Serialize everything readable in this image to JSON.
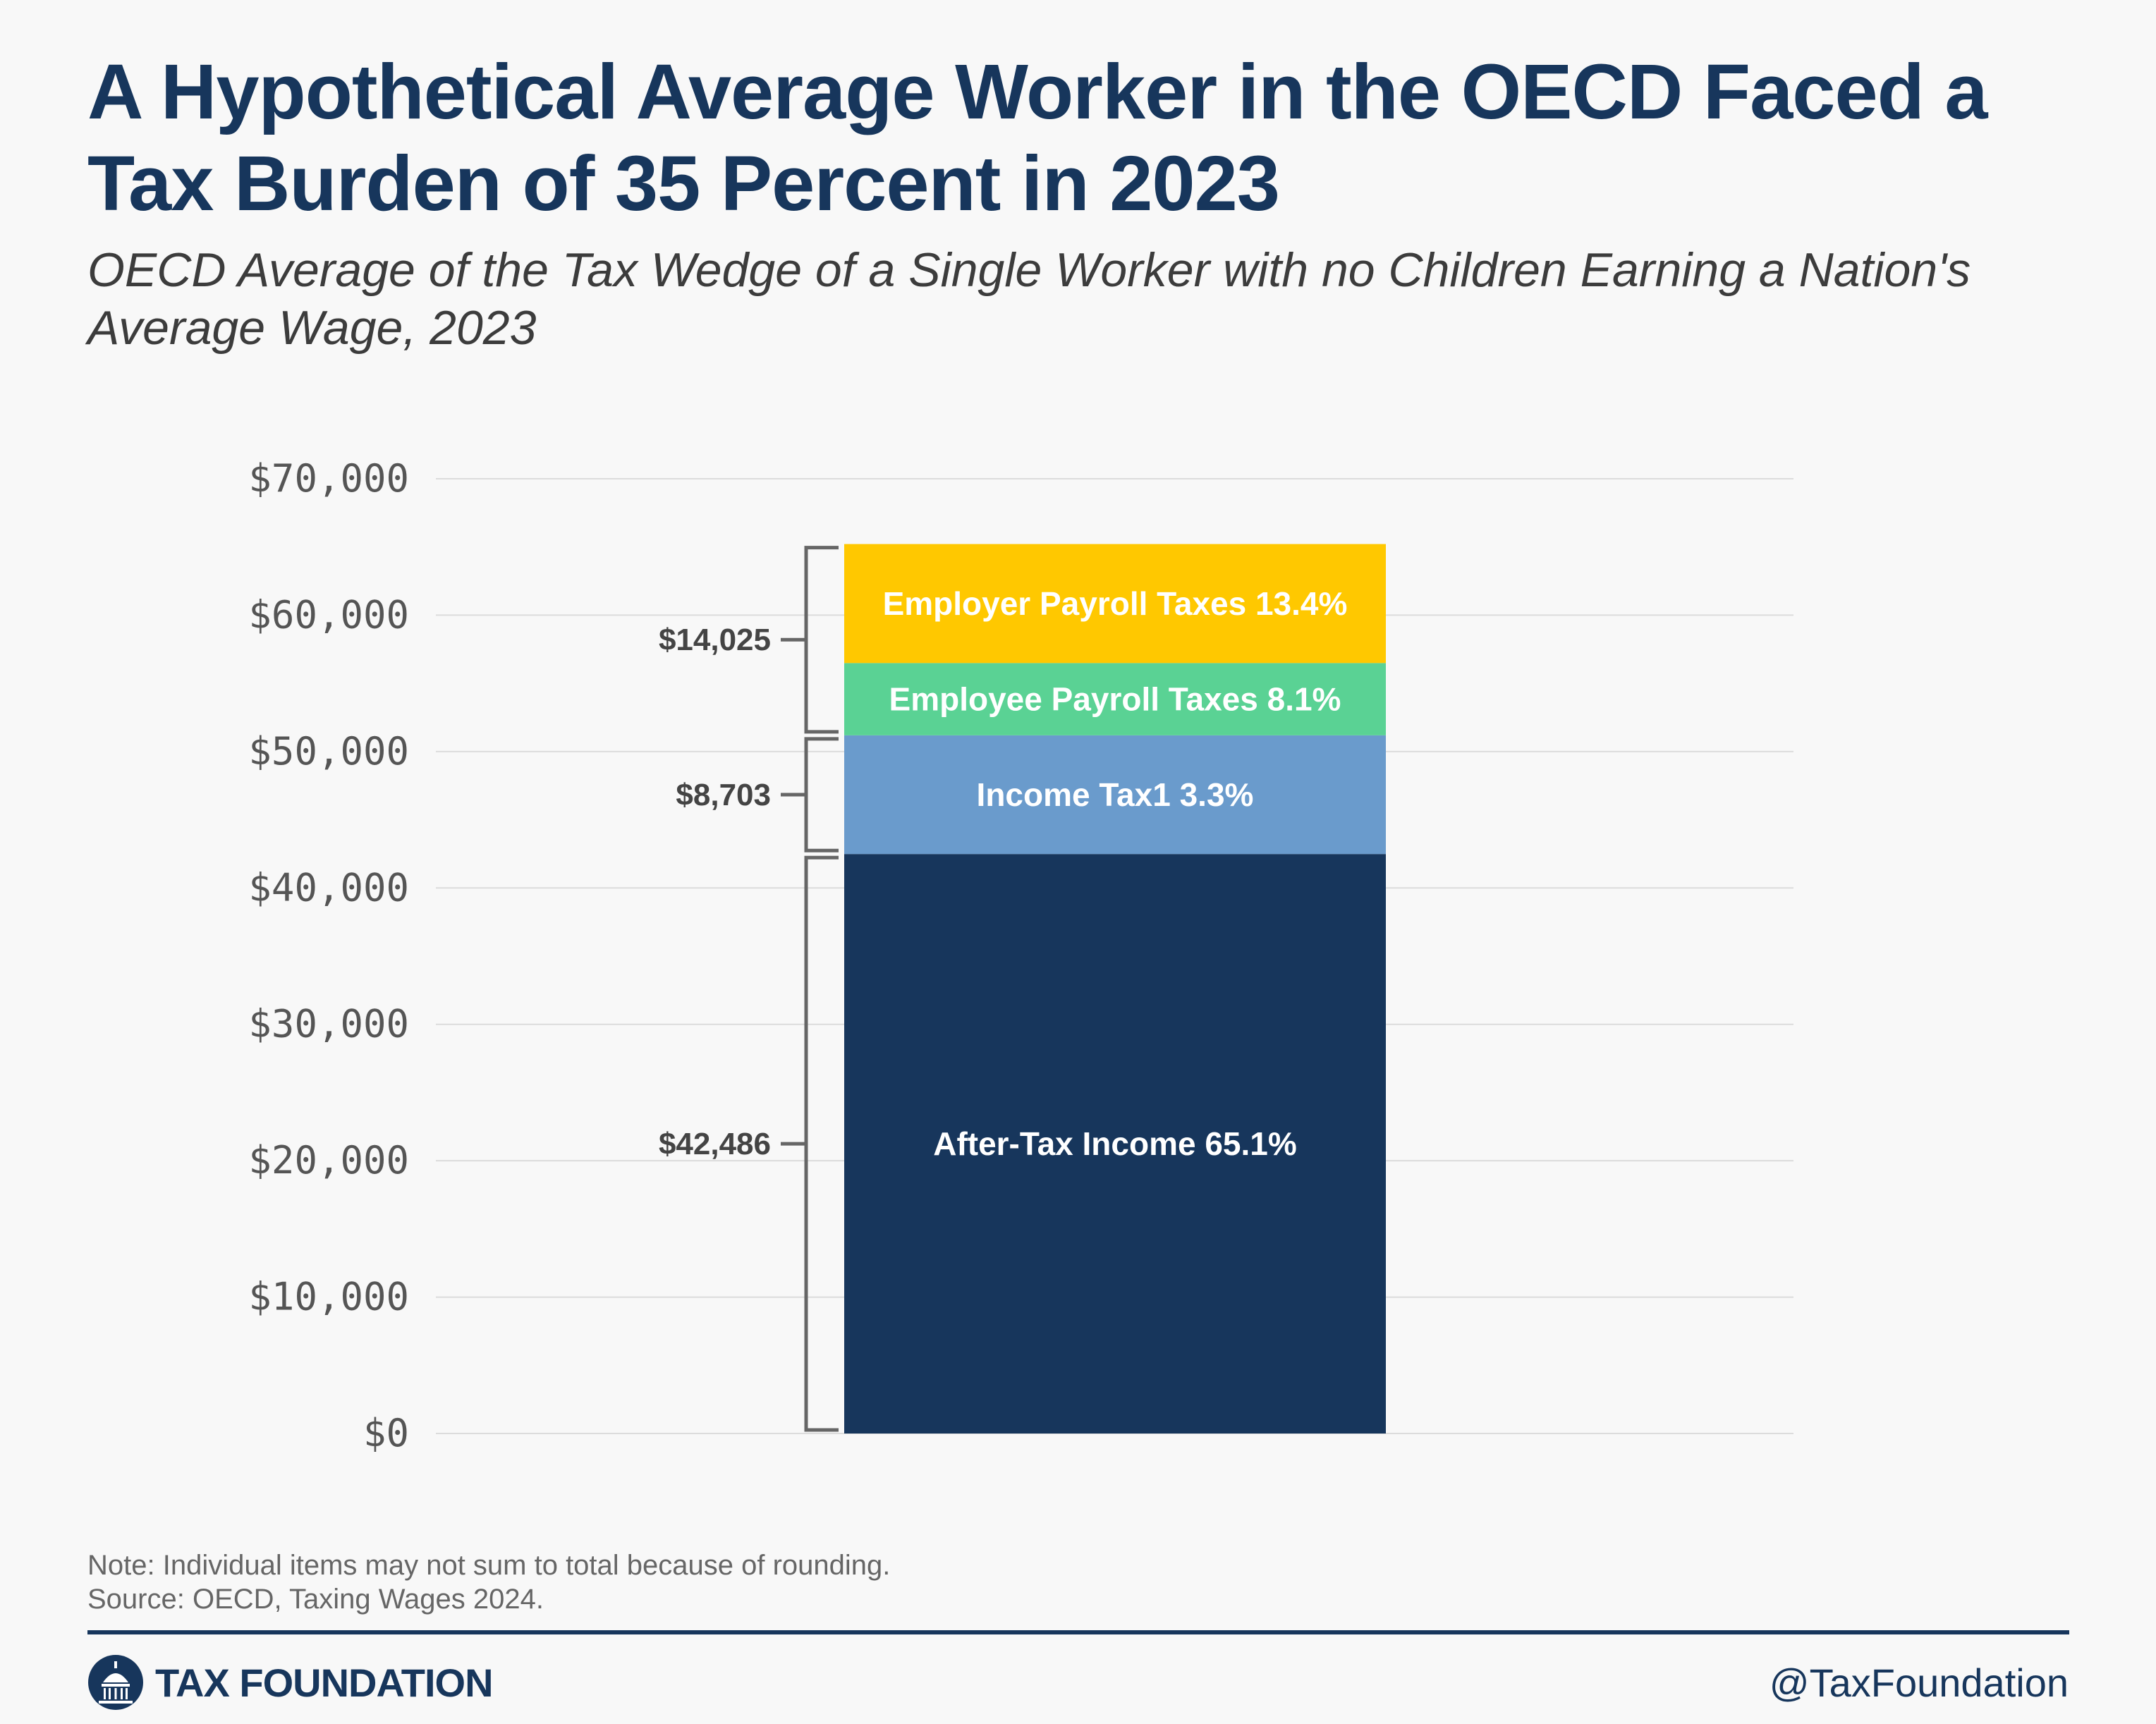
{
  "header": {
    "title": "A Hypothetical Average Worker in the OECD Faced a Tax Burden of 35 Percent in 2023",
    "subtitle": "OECD Average of the Tax Wedge of a Single Worker with no Children Earning a Nation's Average Wage, 2023"
  },
  "chart_data": {
    "type": "bar",
    "stacked": true,
    "title": "",
    "xlabel": "",
    "ylabel": "",
    "ylim": [
      0,
      70000
    ],
    "yticks": [
      0,
      10000,
      20000,
      30000,
      40000,
      50000,
      60000,
      70000
    ],
    "ytick_labels": [
      "$0",
      "$10,000",
      "$20,000",
      "$30,000",
      "$40,000",
      "$50,000",
      "$60,000",
      "$70,000"
    ],
    "grid": true,
    "segments": [
      {
        "label": "After-Tax Income 65.1%",
        "value": 42486,
        "color": "#17365c"
      },
      {
        "label": "Income Tax1 3.3%",
        "value": 8703,
        "color": "#6a9bcc"
      },
      {
        "label": "Employee Payroll Taxes 8.1%",
        "value": 5300,
        "color": "#5ad294"
      },
      {
        "label": "Employer Payroll Taxes 13.4%",
        "value": 8725,
        "color": "#ffc800"
      }
    ],
    "brackets": [
      {
        "label": "$42,486",
        "from": 0,
        "to": 42486
      },
      {
        "label": "$8,703",
        "from": 42486,
        "to": 51189
      },
      {
        "label": "$14,025",
        "from": 51189,
        "to": 65214
      }
    ]
  },
  "footer": {
    "note": "Note: Individual items may not sum to total because of rounding.",
    "source": "Source: OECD, Taxing Wages 2024.",
    "brand": "TAX FOUNDATION",
    "handle": "@TaxFoundation"
  },
  "colors": {
    "brand": "#17365c",
    "text_muted": "#666666"
  }
}
